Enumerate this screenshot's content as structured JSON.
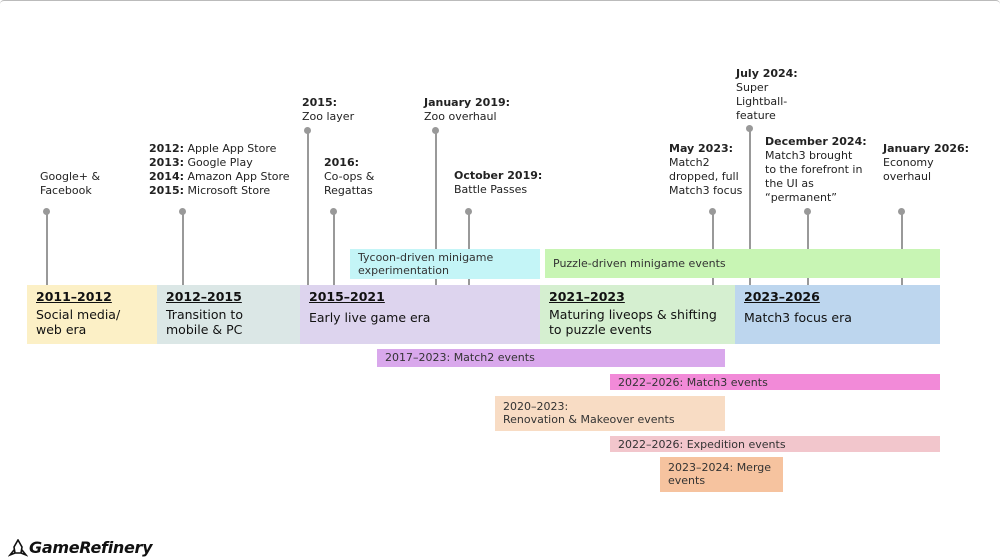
{
  "annotations": [
    {
      "lines": [
        "Google+ &",
        "Facebook"
      ]
    },
    {
      "entries": [
        {
          "year": "2012:",
          "text": "Apple App Store"
        },
        {
          "year": "2013:",
          "text": "Google Play"
        },
        {
          "year": "2014:",
          "text": "Amazon App Store"
        },
        {
          "year": "2015:",
          "text": "Microsoft Store"
        }
      ]
    },
    {
      "date": "2015:",
      "lines": [
        "Zoo layer"
      ]
    },
    {
      "date": "2016:",
      "lines": [
        "Co-ops &",
        "Regattas"
      ]
    },
    {
      "date": "January 2019:",
      "lines": [
        "Zoo overhaul"
      ]
    },
    {
      "date": "October 2019:",
      "lines": [
        "Battle Passes"
      ]
    },
    {
      "date": "May 2023:",
      "lines": [
        "Match2",
        "dropped, full",
        "Match3 focus"
      ]
    },
    {
      "date": "July 2024:",
      "lines": [
        "Super",
        "Lightball-",
        "feature"
      ]
    },
    {
      "date": "December 2024:",
      "lines": [
        "Match3 brought",
        "to the forefront in",
        "the UI as",
        "“permanent”"
      ]
    },
    {
      "date": "January 2026:",
      "lines": [
        "Economy",
        "overhaul"
      ]
    }
  ],
  "themes": [
    {
      "lines": [
        "Tycoon-driven minigame",
        "experimentation"
      ]
    },
    {
      "lines": [
        "Puzzle-driven minigame events"
      ]
    }
  ],
  "eras": [
    {
      "years": "2011–2012",
      "lines": [
        "Social media/",
        "web era"
      ]
    },
    {
      "years": "2012–2015",
      "lines": [
        "Transition to",
        "mobile & PC"
      ]
    },
    {
      "years": "2015–2021",
      "lines": [
        "Early live game era"
      ]
    },
    {
      "years": "2021–2023",
      "lines": [
        "Maturing liveops & shifting",
        "to puzzle events"
      ]
    },
    {
      "years": "2023–2026",
      "lines": [
        "Match3 focus era"
      ]
    }
  ],
  "events": [
    {
      "lines": [
        "2017–2023: Match2 events"
      ]
    },
    {
      "lines": [
        "2022–2026: Match3 events"
      ]
    },
    {
      "lines": [
        "2020–2023:",
        "Renovation & Makeover events"
      ]
    },
    {
      "lines": [
        "2022–2026: Expedition events"
      ]
    },
    {
      "lines": [
        "2023–2024: Merge",
        "events"
      ]
    }
  ],
  "logo": "GameRefinery"
}
